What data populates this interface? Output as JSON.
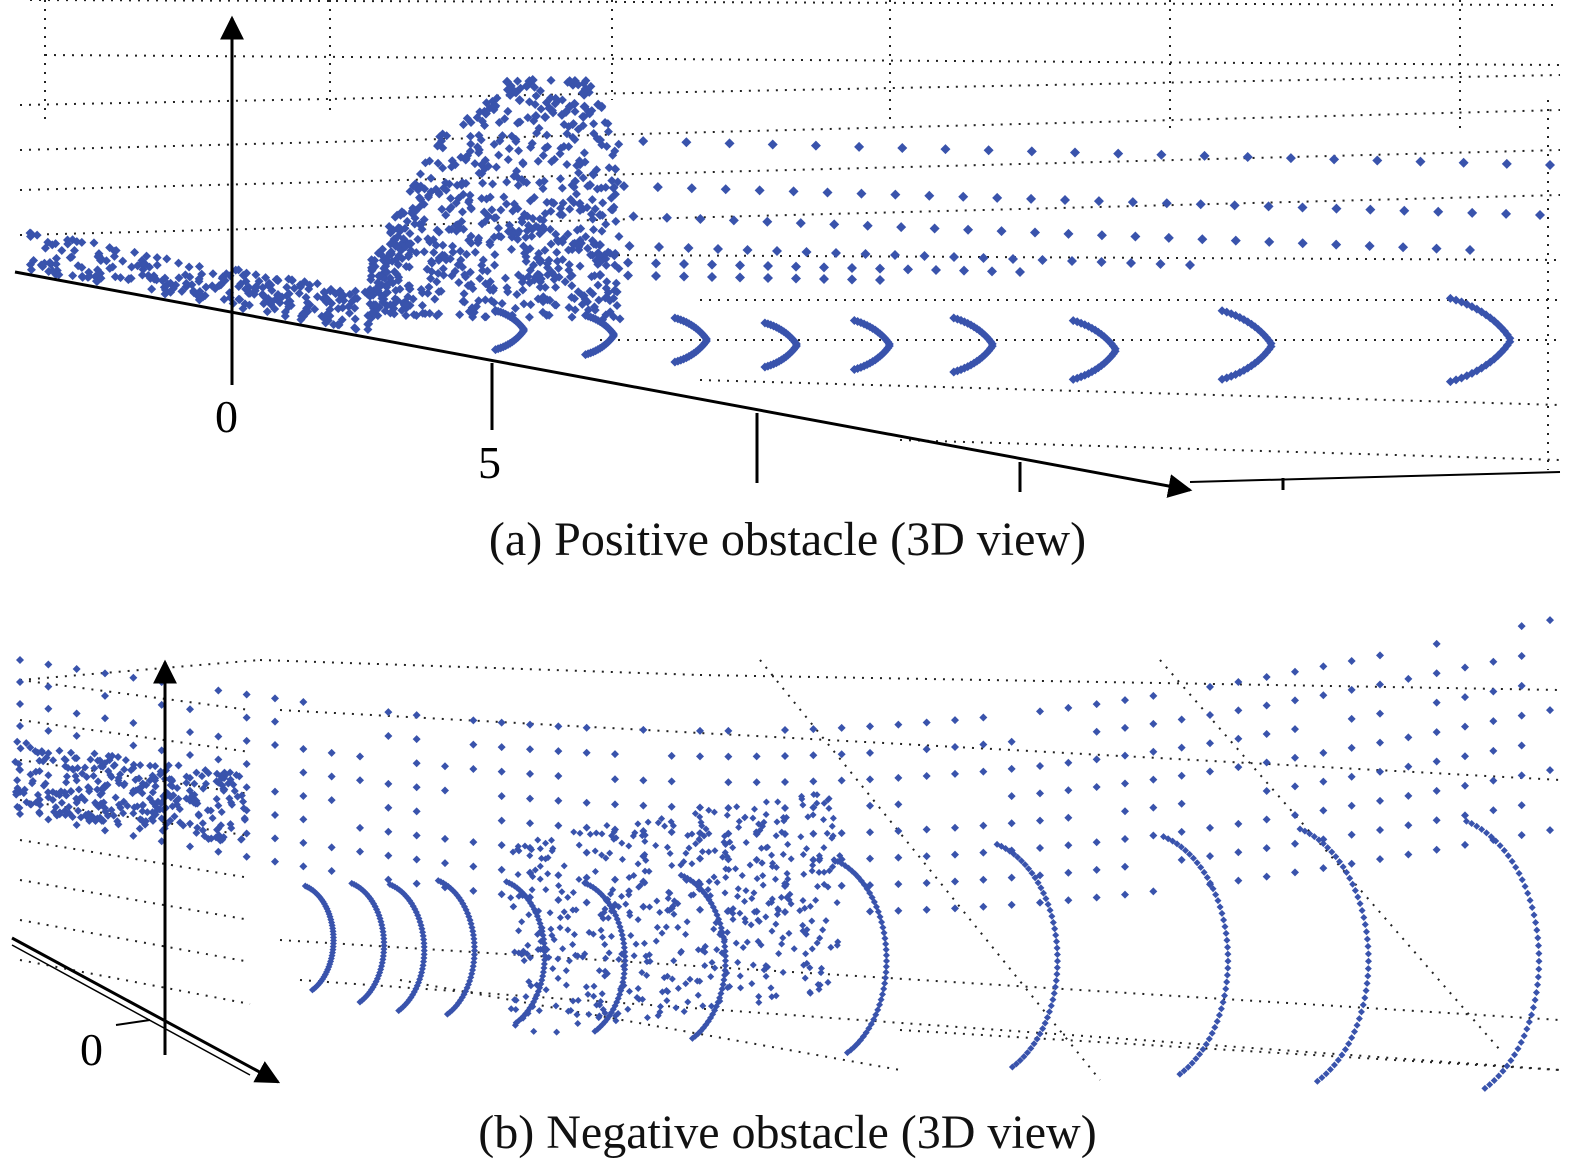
{
  "chart_data": [
    {
      "type": "scatter",
      "title": "(a) Positive obstacle (3D view)",
      "view": "3D",
      "grid": "dotted",
      "marker_color": "#3953AC",
      "axis_tick_labels": [
        "0",
        "5"
      ],
      "features": {
        "obstacle_peak_x": 6,
        "ground_rings": 9
      }
    },
    {
      "type": "scatter",
      "title": "(b) Negative obstacle (3D view)",
      "view": "3D",
      "grid": "dotted",
      "marker_color": "#3953AC",
      "axis_tick_labels": [
        "0"
      ],
      "features": {
        "ground_rings": 12
      }
    }
  ]
}
